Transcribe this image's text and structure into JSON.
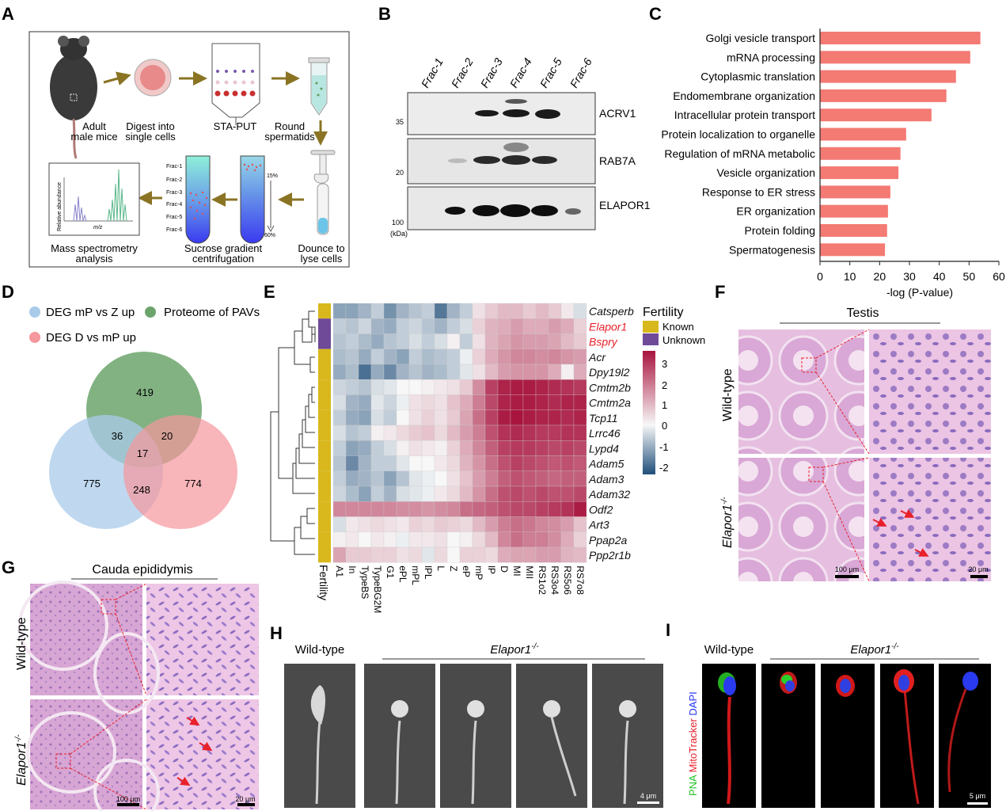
{
  "panels": {
    "A": "A",
    "B": "B",
    "C": "C",
    "D": "D",
    "E": "E",
    "F": "F",
    "G": "G",
    "H": "H",
    "I": "I"
  },
  "panel_a": {
    "steps": [
      "Adult",
      "male mice",
      "Digest into",
      "single cells",
      "STA-PUT",
      "Round",
      "spermatids",
      "Dounce to",
      "lyse cells",
      "Sucrose gradient",
      "centrifugation",
      "Mass spectrometry",
      "analysis"
    ],
    "fractions": [
      "Frac-1",
      "Frac-2",
      "Frac-3",
      "Frac-4",
      "Frac-5",
      "Frac-6"
    ],
    "gradient_top": "15%",
    "gradient_bottom": "60%",
    "ms_ylabel": "Relative abundance",
    "ms_xlabel": "m/z"
  },
  "panel_b": {
    "lanes": [
      "Frac-1",
      "Frac-2",
      "Frac-3",
      "Frac-4",
      "Frac-5",
      "Frac-6"
    ],
    "proteins": [
      "ACRV1",
      "RAB7A",
      "ELAPOR1"
    ],
    "markers": [
      "35",
      "20",
      "100"
    ],
    "unit": "(kDa)"
  },
  "chart_data": [
    {
      "type": "bar",
      "orientation": "horizontal",
      "categories": [
        "Golgi vesicle transport",
        "mRNA processing",
        "Cytoplasmic translation",
        "Endomembrane organization",
        "Intracellular protein transport",
        "Protein localization to organelle",
        "Regulation of mRNA metabolic",
        "Vesicle organization",
        "Response to ER stress",
        "ER organization",
        "Protein folding",
        "Spermatogenesis"
      ],
      "values": [
        53.8,
        50.4,
        45.6,
        42.4,
        37.4,
        28.9,
        27.0,
        26.3,
        23.6,
        22.8,
        22.5,
        21.8
      ],
      "xlabel": "-log (P-value)",
      "xlim": [
        0,
        60
      ],
      "xticks": [
        "0",
        "10",
        "20",
        "30",
        "40",
        "50",
        "60"
      ],
      "color": "#f47a74"
    },
    {
      "type": "venn",
      "sets": [
        "DEG mP vs Z up",
        "Proteome of PAVs",
        "DEG D vs mP up"
      ],
      "set_colors": [
        "#a9cbe9",
        "#6ca56c",
        "#f5979c"
      ],
      "regions": {
        "proteome_only": "419",
        "mp_z_proteome": "36",
        "proteome_d_mp": "20",
        "all_three": "17",
        "mp_z_only": "775",
        "mp_z_d_mp": "248",
        "d_mp_only": "774"
      }
    },
    {
      "type": "heatmap",
      "columns": [
        "A1",
        "In",
        "TypeBS",
        "TypeBG2M",
        "G1",
        "ePL",
        "mPL",
        "lPL",
        "L",
        "Z",
        "eP",
        "mP",
        "lP",
        "D",
        "MI",
        "MII",
        "RS1o2",
        "RS3o4",
        "RS5o6",
        "RS7o8"
      ],
      "rows": [
        "Catsperb",
        "Elapor1",
        "Bspry",
        "Acr",
        "Dpy19l2",
        "Cmtm2b",
        "Cmtm2a",
        "Tcp11",
        "Lrrc46",
        "Lypd4",
        "Adam5",
        "Adam3",
        "Adam32",
        "Odf2",
        "Art3",
        "Ppap2a",
        "Ppp2r1b"
      ],
      "highlight_rows": [
        "Elapor1",
        "Bspry"
      ],
      "highlight_color": "#e8202a",
      "fertility": [
        "Known",
        "Unknown",
        "Unknown",
        "Known",
        "Known",
        "Known",
        "Known",
        "Known",
        "Known",
        "Known",
        "Known",
        "Known",
        "Known",
        "Known",
        "Known",
        "Known",
        "Known"
      ],
      "fertility_label": "Fertility",
      "fertility_legend": [
        {
          "label": "Known",
          "color": "#d8b81c"
        },
        {
          "label": "Unknown",
          "color": "#6e4a98"
        }
      ],
      "color_range": [
        -2,
        3
      ],
      "colorbar_ticks": [
        "3",
        "2",
        "1",
        "0",
        "-1",
        "-2"
      ],
      "colors": {
        "low": "#1f4e7a",
        "mid": "#f7f7f7",
        "high": "#a8143e"
      },
      "values": [
        [
          -1,
          -1,
          -0.8,
          -0.5,
          -1.2,
          -0.8,
          -0.6,
          -0.5,
          -1.5,
          -0.8,
          -0.5,
          0.3,
          0.6,
          0.8,
          0.8,
          0.6,
          0.8,
          0.6,
          0.2,
          -0.3
        ],
        [
          -0.5,
          -0.6,
          -0.4,
          -0.8,
          -0.9,
          -0.5,
          -0.4,
          -0.6,
          -0.8,
          -0.5,
          -0.3,
          0.5,
          0.9,
          1.0,
          1.2,
          1.0,
          1.0,
          1.2,
          1.0,
          0.5
        ],
        [
          -0.6,
          -0.5,
          -0.7,
          -0.9,
          -0.6,
          -0.5,
          -0.3,
          -0.5,
          -0.3,
          0.1,
          -0.5,
          0.3,
          0.9,
          1.1,
          1.3,
          1.2,
          1.2,
          1.1,
          0.8,
          0.6
        ],
        [
          -0.7,
          -0.6,
          -0.9,
          -0.5,
          -0.8,
          -1.0,
          -0.5,
          -0.7,
          -0.6,
          -0.5,
          -0.1,
          0.5,
          1.0,
          1.3,
          1.5,
          1.5,
          1.4,
          1.5,
          1.3,
          1.2
        ],
        [
          -0.9,
          -0.7,
          -1.6,
          -0.9,
          -1.3,
          -0.8,
          -0.6,
          -0.8,
          -0.7,
          -0.5,
          -0.2,
          0.3,
          0.8,
          1.2,
          1.3,
          1.3,
          1.3,
          1.0,
          0.1,
          1.0
        ],
        [
          -0.4,
          -0.5,
          -0.6,
          -0.3,
          -0.2,
          0.0,
          0.0,
          0.1,
          0.2,
          0.3,
          0.6,
          1.4,
          2.4,
          2.8,
          2.9,
          2.9,
          2.8,
          2.7,
          2.6,
          2.5
        ],
        [
          -0.3,
          -0.8,
          -0.9,
          -0.2,
          -0.4,
          -0.1,
          0.3,
          0.4,
          0.3,
          0.7,
          1.0,
          1.6,
          2.3,
          2.8,
          2.9,
          2.9,
          2.8,
          2.7,
          2.8,
          2.8
        ],
        [
          -0.5,
          -0.9,
          -1.0,
          -0.3,
          -0.5,
          0.0,
          0.3,
          0.5,
          0.3,
          0.6,
          1.1,
          1.8,
          2.4,
          2.9,
          3.0,
          2.9,
          2.8,
          2.8,
          2.7,
          2.8
        ],
        [
          -0.3,
          -0.6,
          -0.5,
          0.1,
          0.2,
          0.4,
          0.6,
          0.7,
          0.4,
          0.8,
          1.2,
          1.6,
          2.2,
          2.6,
          2.7,
          2.6,
          2.5,
          2.5,
          2.6,
          2.6
        ],
        [
          -0.5,
          -1.0,
          -0.9,
          -0.5,
          -0.3,
          0.1,
          0.3,
          0.2,
          0.1,
          0.5,
          1.0,
          1.5,
          2.0,
          2.4,
          2.5,
          2.5,
          2.4,
          2.3,
          2.4,
          2.3
        ],
        [
          -0.6,
          -1.3,
          -0.8,
          -0.5,
          -0.5,
          -0.2,
          0.0,
          0.0,
          0.2,
          0.4,
          0.9,
          1.3,
          1.8,
          2.2,
          2.4,
          2.3,
          2.2,
          2.1,
          2.2,
          2.1
        ],
        [
          -0.5,
          -0.9,
          -0.8,
          -0.6,
          -1.0,
          -0.6,
          -0.2,
          -0.1,
          0.0,
          0.3,
          0.7,
          1.2,
          1.6,
          2.0,
          2.2,
          2.1,
          2.0,
          1.9,
          2.0,
          2.0
        ],
        [
          -0.4,
          -0.7,
          -1.0,
          -0.5,
          -0.8,
          -0.3,
          -0.2,
          -0.1,
          0.2,
          0.4,
          0.8,
          1.3,
          1.8,
          2.2,
          2.3,
          2.2,
          2.3,
          2.2,
          2.2,
          2.3
        ],
        [
          1.5,
          1.5,
          1.5,
          1.5,
          1.5,
          1.4,
          1.4,
          1.3,
          1.4,
          1.5,
          1.8,
          1.9,
          2.0,
          2.2,
          2.3,
          2.3,
          2.4,
          2.5,
          2.6,
          2.9
        ],
        [
          -0.3,
          0.2,
          0.3,
          0.4,
          0.3,
          0.2,
          0.5,
          0.4,
          0.6,
          0.5,
          0.4,
          0.8,
          1.2,
          1.6,
          1.8,
          1.7,
          1.5,
          1.4,
          1.2,
          0.7
        ],
        [
          0.1,
          0.2,
          0.0,
          0.2,
          0.1,
          -0.1,
          0.2,
          0.2,
          0.3,
          0.0,
          0.1,
          0.4,
          0.8,
          1.5,
          1.8,
          1.6,
          1.6,
          1.4,
          1.0,
          0.5
        ],
        [
          1.1,
          0.6,
          0.6,
          0.5,
          0.5,
          0.3,
          0.4,
          -0.2,
          0.4,
          0.0,
          0.5,
          0.5,
          0.4,
          1.0,
          1.1,
          1.1,
          1.2,
          1.2,
          0.9,
          0.8
        ]
      ]
    }
  ],
  "panel_f": {
    "title": "Testis",
    "row_wt": "Wild-type",
    "row_ko": "Elapor1",
    "ko_sup": "-/-",
    "scale_low": "100 μm",
    "scale_high": "20 μm"
  },
  "panel_g": {
    "title": "Cauda epididymis",
    "row_wt": "Wild-type",
    "row_ko": "Elapor1",
    "ko_sup": "-/-",
    "scale_low": "100 μm",
    "scale_high": "20 μm"
  },
  "panel_h": {
    "wt": "Wild-type",
    "ko": "Elapor1",
    "ko_sup": "-/-",
    "scale": "4 μm"
  },
  "panel_i": {
    "wt": "Wild-type",
    "ko": "Elapor1",
    "ko_sup": "-/-",
    "stain_pna": "PNA",
    "stain_mito": "MitoTracker",
    "stain_dapi": "DAPI",
    "stain_colors": [
      "#22c022",
      "#e8202a",
      "#2233ee"
    ],
    "scale": "5 μm"
  }
}
